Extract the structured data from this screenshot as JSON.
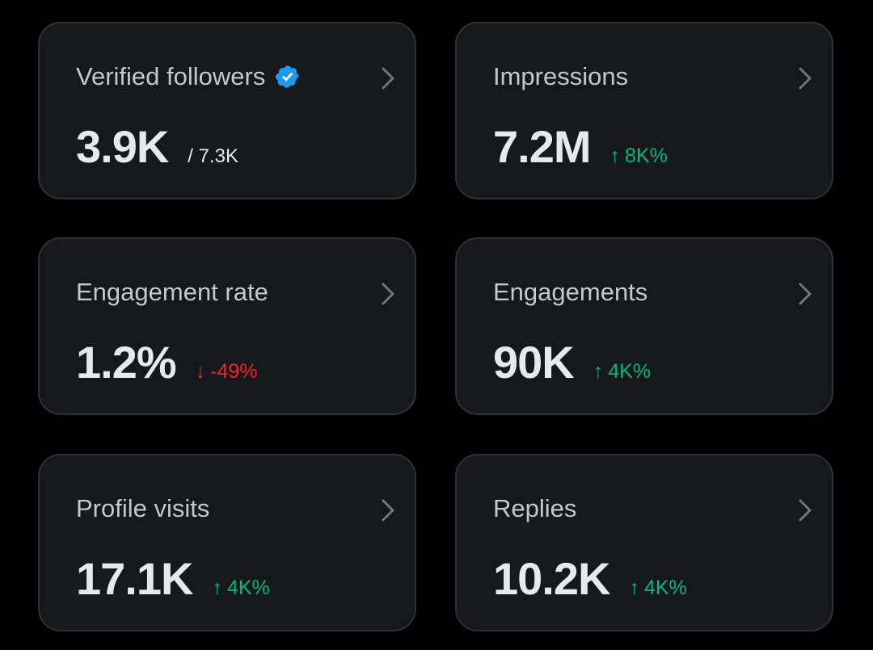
{
  "colors": {
    "background": "#000000",
    "card_background": "#16181c",
    "card_border": "#2f3336",
    "title": "#c4c7cc",
    "value": "#e7e9ea",
    "positive": "#00ba7c",
    "negative": "#f4212e",
    "verified_badge": "#1d9bf0"
  },
  "cards": [
    {
      "title": "Verified followers",
      "value": "3.9K",
      "secondary": "/ 7.3K",
      "icon": "verified-badge-icon"
    },
    {
      "title": "Impressions",
      "value": "7.2M",
      "delta_arrow": "↑",
      "delta": "8K%",
      "trend": "up"
    },
    {
      "title": "Engagement rate",
      "value": "1.2%",
      "delta_arrow": "↓",
      "delta": "-49%",
      "trend": "down"
    },
    {
      "title": "Engagements",
      "value": "90K",
      "delta_arrow": "↑",
      "delta": "4K%",
      "trend": "up"
    },
    {
      "title": "Profile visits",
      "value": "17.1K",
      "delta_arrow": "↑",
      "delta": "4K%",
      "trend": "up"
    },
    {
      "title": "Replies",
      "value": "10.2K",
      "delta_arrow": "↑",
      "delta": "4K%",
      "trend": "up"
    }
  ]
}
